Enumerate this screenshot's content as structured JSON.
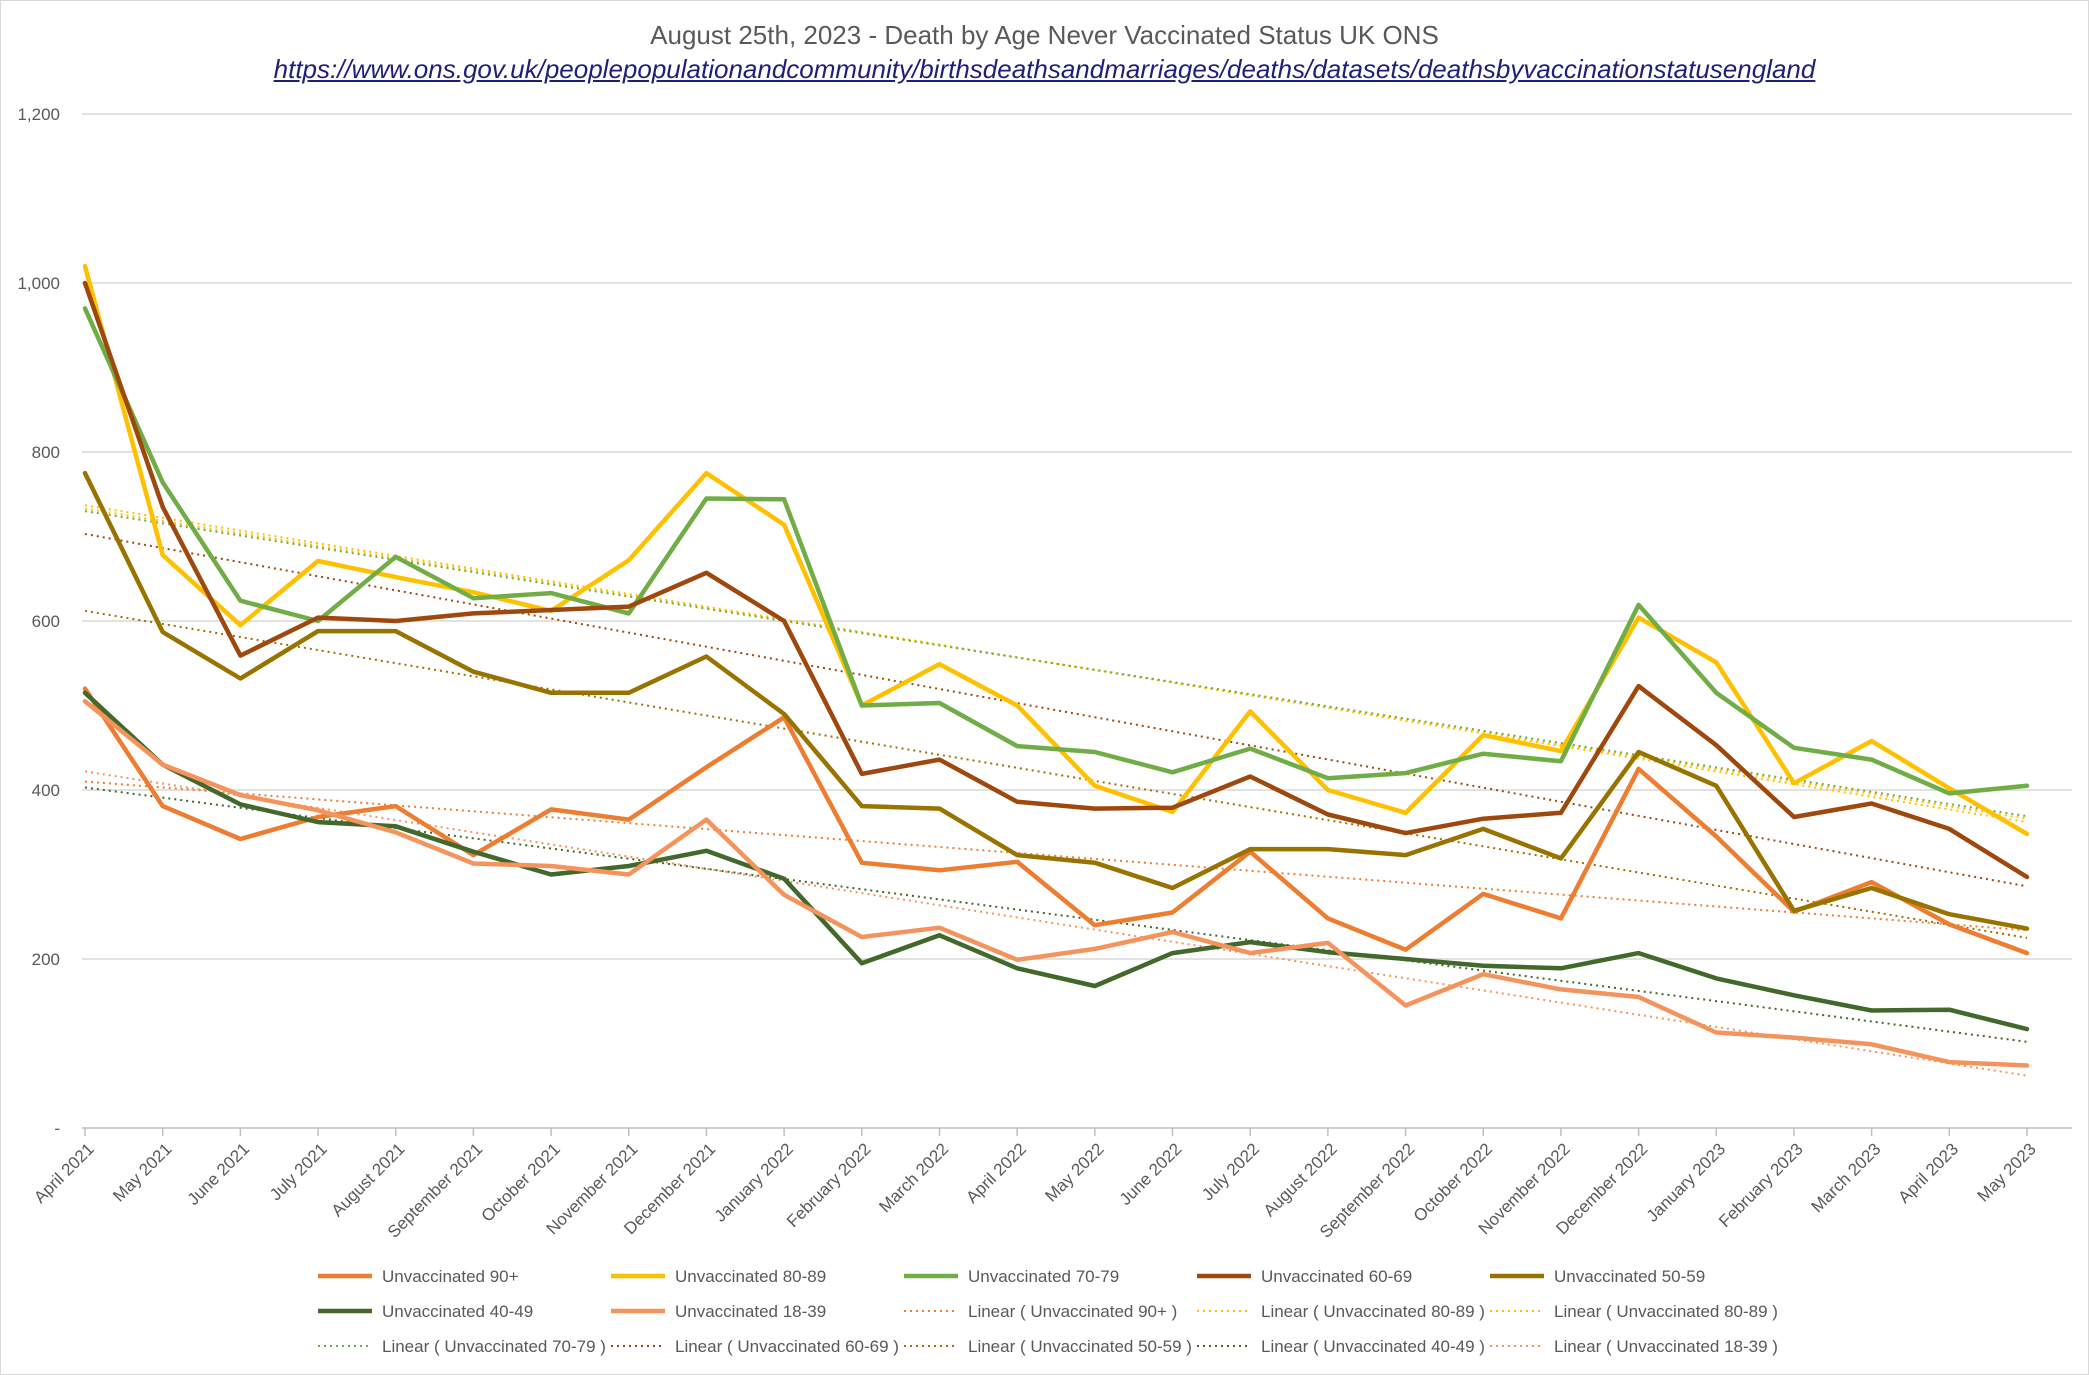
{
  "chart_data": {
    "type": "line",
    "title": "August 25th, 2023 - Death by Age Never Vaccinated Status UK ONS",
    "subtitle": "https://www.ons.gov.uk/peoplepopulationandcommunity/birthsdeathsandmarriages/deaths/datasets/deathsbyvaccinationstatusengland",
    "xlabel": "",
    "ylabel": "",
    "ylim": [
      0,
      1200
    ],
    "yticks": [
      {
        "value": 0,
        "label": "-"
      },
      {
        "value": 200,
        "label": "200"
      },
      {
        "value": 400,
        "label": "400"
      },
      {
        "value": 600,
        "label": "600"
      },
      {
        "value": 800,
        "label": "800"
      },
      {
        "value": 1000,
        "label": "1,000"
      },
      {
        "value": 1200,
        "label": "1,200"
      }
    ],
    "grid": true,
    "legend_position": "bottom",
    "categories": [
      "April 2021",
      "May 2021",
      "June 2021",
      "July 2021",
      "August 2021",
      "September 2021",
      "October 2021",
      "November 2021",
      "December 2021",
      "January 2022",
      "February 2022",
      "March 2022",
      "April 2022",
      "May 2022",
      "June 2022",
      "July 2022",
      "August 2022",
      "September 2022",
      "October 2022",
      "November 2022",
      "December 2022",
      "January 2023",
      "February 2023",
      "March 2023",
      "April 2023",
      "May 2023"
    ],
    "series": [
      {
        "name": "Unvaccinated 90+",
        "color": "#ed7d31",
        "values": [
          520,
          381,
          342,
          368,
          381,
          323,
          377,
          365,
          427,
          486,
          314,
          305,
          315,
          240,
          255,
          327,
          248,
          211,
          277,
          248,
          425,
          345,
          256,
          291,
          241,
          207
        ]
      },
      {
        "name": "Unvaccinated 80-89",
        "color": "#ffc000",
        "values": [
          1020,
          678,
          595,
          671,
          652,
          634,
          612,
          672,
          775,
          714,
          500,
          549,
          500,
          405,
          374,
          493,
          400,
          373,
          465,
          446,
          604,
          551,
          408,
          458,
          402,
          348
        ]
      },
      {
        "name": "Unvaccinated 70-79",
        "color": "#70ad47",
        "values": [
          970,
          764,
          624,
          600,
          676,
          627,
          633,
          609,
          745,
          744,
          500,
          503,
          452,
          445,
          421,
          449,
          414,
          420,
          443,
          434,
          619,
          515,
          450,
          436,
          396,
          405
        ]
      },
      {
        "name": "Unvaccinated  60-69",
        "color": "#9e480e",
        "values": [
          1000,
          735,
          559,
          604,
          600,
          609,
          613,
          617,
          657,
          600,
          419,
          436,
          386,
          378,
          379,
          416,
          371,
          349,
          366,
          373,
          523,
          453,
          368,
          384,
          354,
          297
        ]
      },
      {
        "name": "Unvaccinated 50-59",
        "color": "#997300",
        "values": [
          775,
          587,
          532,
          588,
          588,
          540,
          515,
          515,
          558,
          490,
          381,
          378,
          323,
          314,
          284,
          330,
          330,
          323,
          354,
          319,
          445,
          405,
          257,
          284,
          253,
          236
        ]
      },
      {
        "name": "Unvaccinated 40-49",
        "color": "#43682b",
        "values": [
          515,
          430,
          383,
          362,
          357,
          327,
          300,
          310,
          328,
          295,
          195,
          228,
          189,
          168,
          207,
          220,
          208,
          200,
          192,
          189,
          207,
          177,
          157,
          139,
          140,
          117
        ]
      },
      {
        "name": "Unvaccinated 18-39",
        "color": "#f4945c",
        "values": [
          505,
          430,
          394,
          376,
          350,
          313,
          310,
          300,
          365,
          276,
          226,
          237,
          199,
          212,
          232,
          207,
          219,
          145,
          182,
          164,
          155,
          113,
          107,
          99,
          78,
          74
        ]
      }
    ],
    "trendlines": [
      {
        "name": "Linear ( Unvaccinated 90+ )",
        "color": "#ed7d31",
        "start": 410,
        "end": 234
      },
      {
        "name": "Linear ( Unvaccinated 80-89 )",
        "color": "#ffc000",
        "start": 737,
        "end": 362
      },
      {
        "name": "Linear ( Unvaccinated 80-89 )",
        "color": "#ffc000",
        "start": 733,
        "end": 366
      },
      {
        "name": "Linear ( Unvaccinated 70-79 )",
        "color": "#70ad47",
        "start": 730,
        "end": 369
      },
      {
        "name": "Linear ( Unvaccinated  60-69 )",
        "color": "#9e480e",
        "start": 703,
        "end": 286
      },
      {
        "name": "Linear ( Unvaccinated 50-59 )",
        "color": "#997300",
        "start": 612,
        "end": 225
      },
      {
        "name": "Linear ( Unvaccinated 40-49 )",
        "color": "#43682b",
        "start": 403,
        "end": 102
      },
      {
        "name": "Linear ( Unvaccinated 18-39 )",
        "color": "#f4945c",
        "start": 422,
        "end": 62
      }
    ]
  }
}
